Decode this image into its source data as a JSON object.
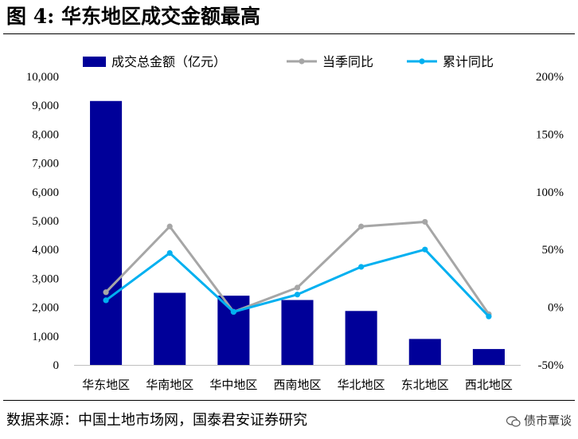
{
  "header": {
    "title": "图 4:  华东地区成交金额最高"
  },
  "footer": {
    "source": "数据来源：中国土地市场网，国泰君安证券研究",
    "watermark": "债市覃谈"
  },
  "chart_data": {
    "type": "bar+line",
    "categories": [
      "华东地区",
      "华南地区",
      "华中地区",
      "西南地区",
      "华北地区",
      "东北地区",
      "西北地区"
    ],
    "series": [
      {
        "name": "成交总金额（亿元）",
        "type": "bar",
        "axis": "left",
        "color": "#000099",
        "values": [
          9150,
          2500,
          2400,
          2250,
          1870,
          900,
          550
        ]
      },
      {
        "name": "当季同比",
        "type": "line",
        "axis": "right",
        "color": "#a6a6a6",
        "values": [
          0.13,
          0.7,
          -0.04,
          0.17,
          0.7,
          0.74,
          -0.06
        ]
      },
      {
        "name": "累计同比",
        "type": "line",
        "axis": "right",
        "color": "#00b0f0",
        "values": [
          0.06,
          0.47,
          -0.04,
          0.11,
          0.35,
          0.5,
          -0.08
        ]
      }
    ],
    "left_axis": {
      "min": 0,
      "max": 10000,
      "ticks": [
        "0",
        "1,000",
        "2,000",
        "3,000",
        "4,000",
        "5,000",
        "6,000",
        "7,000",
        "8,000",
        "9,000",
        "10,000"
      ]
    },
    "right_axis": {
      "min": -0.5,
      "max": 2.0,
      "ticks": [
        "-50%",
        "0%",
        "50%",
        "100%",
        "150%",
        "200%"
      ]
    },
    "legend_position": "top",
    "grid": false
  }
}
